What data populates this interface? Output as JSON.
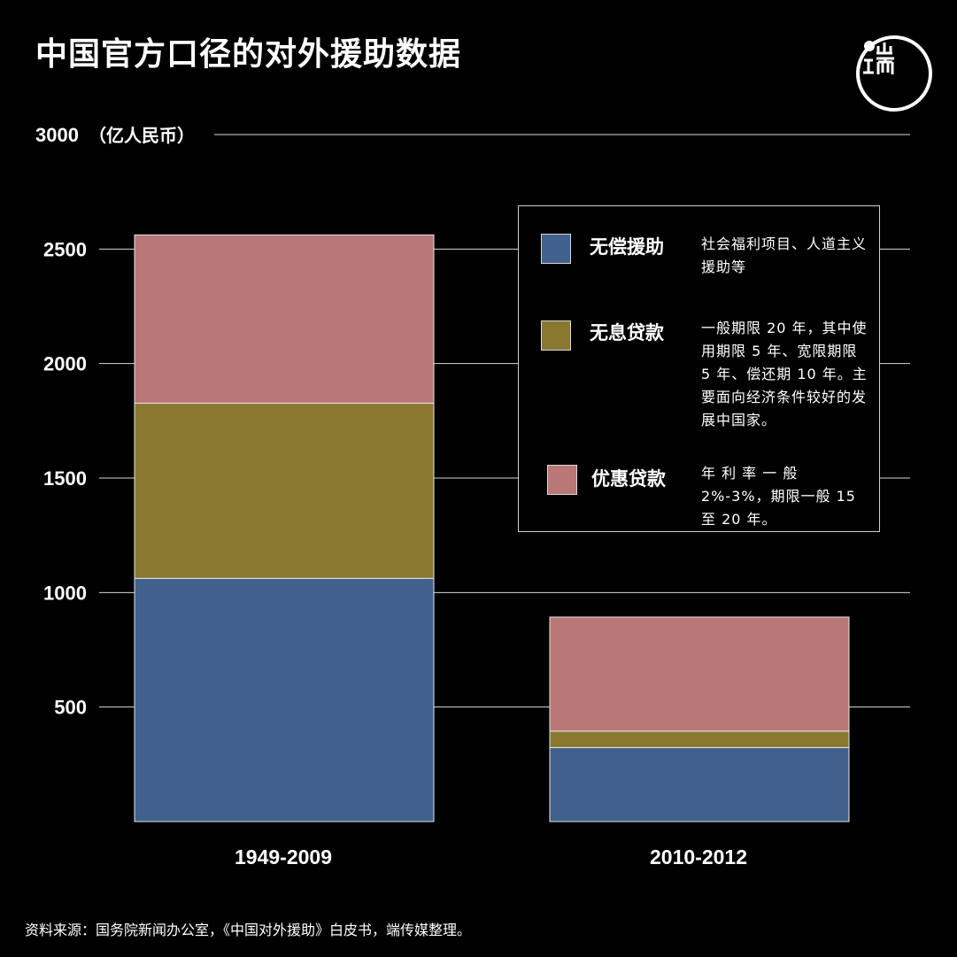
{
  "title": "中国官方口径的对外援助数据",
  "logo": {
    "icon": "duan-media-logo-icon",
    "text": "端"
  },
  "chart_data": {
    "type": "bar",
    "stacked": true,
    "unit_label": "（亿人民币）",
    "ylim": [
      0,
      3000
    ],
    "yticks": [
      500,
      1000,
      1500,
      2000,
      2500,
      3000
    ],
    "grid": true,
    "categories": [
      "1949-2009",
      "2010-2012"
    ],
    "series": [
      {
        "name": "无偿援助",
        "color": "#41618c",
        "values": [
          1062,
          323
        ]
      },
      {
        "name": "无息贷款",
        "color": "#8a7831",
        "values": [
          765,
          72
        ]
      },
      {
        "name": "优惠贷款",
        "color": "#b97777",
        "values": [
          735,
          498
        ]
      }
    ],
    "legend_position": "top-right"
  },
  "legend": [
    {
      "name": "无偿援助",
      "color": "#41618c",
      "desc": "社会福利项目、人道主义援助等"
    },
    {
      "name": "无息贷款",
      "color": "#8a7831",
      "desc": "一般期限 20 年，其中使用期限 5 年、宽限期限 5 年、偿还期 10 年。主要面向经济条件较好的发展中国家。"
    },
    {
      "name": "优惠贷款",
      "color": "#b97777",
      "desc": "年 利 率 一 般 2%-3%，期限一般 15 至 20 年。"
    }
  ],
  "source": "资料来源：国务院新闻办公室，《中国对外援助》白皮书，端传媒整理。"
}
